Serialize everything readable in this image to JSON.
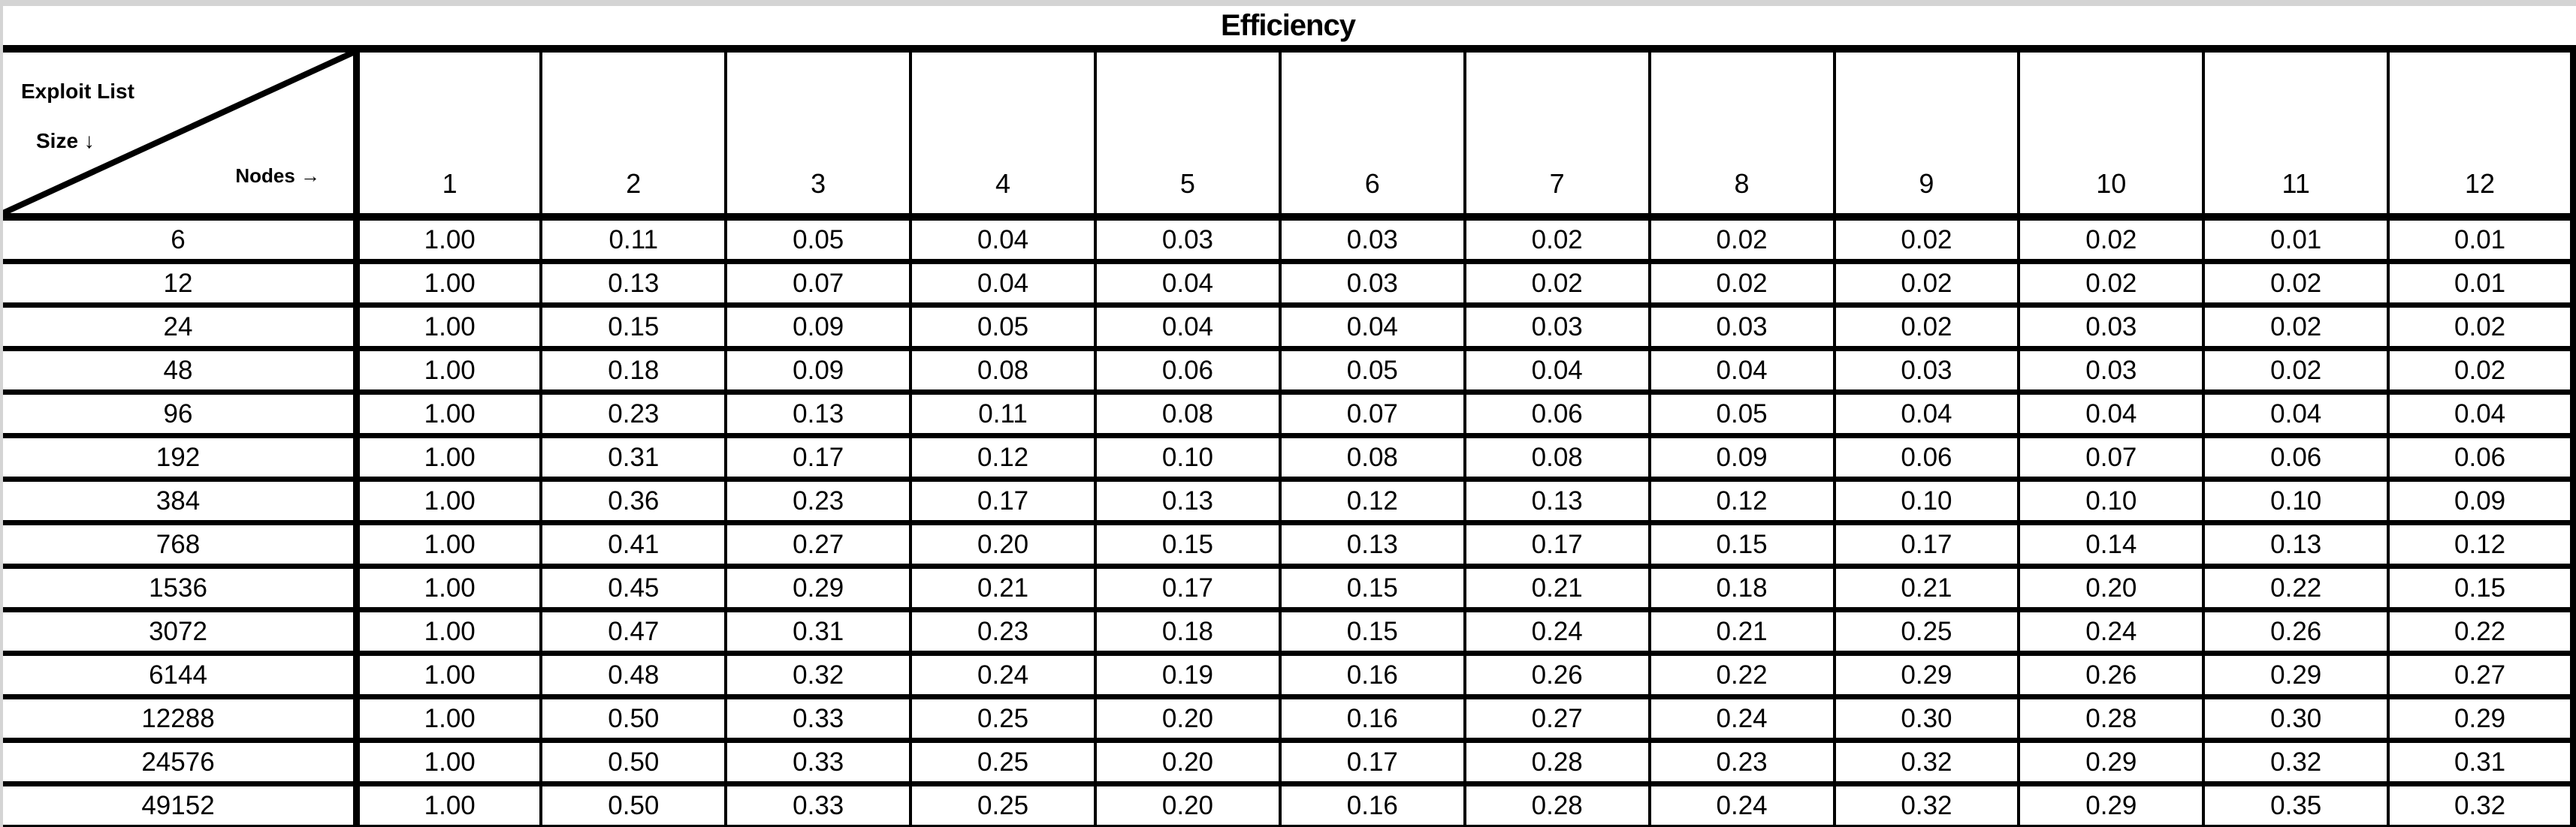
{
  "title": "Efficiency",
  "corner": {
    "top_label": "Exploit List",
    "left_axis_label": "Size ↓",
    "column_axis_label": "Nodes →"
  },
  "colors": {
    "border": "#000000",
    "text": "#000000",
    "background": "#ffffff",
    "page_edge": "#d4d4d4"
  },
  "chart_data": {
    "type": "table",
    "title": "Efficiency",
    "row_dimension": "Exploit List Size",
    "column_dimension": "Nodes",
    "columns": [
      "1",
      "2",
      "3",
      "4",
      "5",
      "6",
      "7",
      "8",
      "9",
      "10",
      "11",
      "12"
    ],
    "row_labels": [
      "6",
      "12",
      "24",
      "48",
      "96",
      "192",
      "384",
      "768",
      "1536",
      "3072",
      "6144",
      "12288",
      "24576",
      "49152"
    ],
    "values": [
      [
        "1.00",
        "0.11",
        "0.05",
        "0.04",
        "0.03",
        "0.03",
        "0.02",
        "0.02",
        "0.02",
        "0.02",
        "0.01",
        "0.01"
      ],
      [
        "1.00",
        "0.13",
        "0.07",
        "0.04",
        "0.04",
        "0.03",
        "0.02",
        "0.02",
        "0.02",
        "0.02",
        "0.02",
        "0.01"
      ],
      [
        "1.00",
        "0.15",
        "0.09",
        "0.05",
        "0.04",
        "0.04",
        "0.03",
        "0.03",
        "0.02",
        "0.03",
        "0.02",
        "0.02"
      ],
      [
        "1.00",
        "0.18",
        "0.09",
        "0.08",
        "0.06",
        "0.05",
        "0.04",
        "0.04",
        "0.03",
        "0.03",
        "0.02",
        "0.02"
      ],
      [
        "1.00",
        "0.23",
        "0.13",
        "0.11",
        "0.08",
        "0.07",
        "0.06",
        "0.05",
        "0.04",
        "0.04",
        "0.04",
        "0.04"
      ],
      [
        "1.00",
        "0.31",
        "0.17",
        "0.12",
        "0.10",
        "0.08",
        "0.08",
        "0.09",
        "0.06",
        "0.07",
        "0.06",
        "0.06"
      ],
      [
        "1.00",
        "0.36",
        "0.23",
        "0.17",
        "0.13",
        "0.12",
        "0.13",
        "0.12",
        "0.10",
        "0.10",
        "0.10",
        "0.09"
      ],
      [
        "1.00",
        "0.41",
        "0.27",
        "0.20",
        "0.15",
        "0.13",
        "0.17",
        "0.15",
        "0.17",
        "0.14",
        "0.13",
        "0.12"
      ],
      [
        "1.00",
        "0.45",
        "0.29",
        "0.21",
        "0.17",
        "0.15",
        "0.21",
        "0.18",
        "0.21",
        "0.20",
        "0.22",
        "0.15"
      ],
      [
        "1.00",
        "0.47",
        "0.31",
        "0.23",
        "0.18",
        "0.15",
        "0.24",
        "0.21",
        "0.25",
        "0.24",
        "0.26",
        "0.22"
      ],
      [
        "1.00",
        "0.48",
        "0.32",
        "0.24",
        "0.19",
        "0.16",
        "0.26",
        "0.22",
        "0.29",
        "0.26",
        "0.29",
        "0.27"
      ],
      [
        "1.00",
        "0.50",
        "0.33",
        "0.25",
        "0.20",
        "0.16",
        "0.27",
        "0.24",
        "0.30",
        "0.28",
        "0.30",
        "0.29"
      ],
      [
        "1.00",
        "0.50",
        "0.33",
        "0.25",
        "0.20",
        "0.17",
        "0.28",
        "0.23",
        "0.32",
        "0.29",
        "0.32",
        "0.31"
      ],
      [
        "1.00",
        "0.50",
        "0.33",
        "0.25",
        "0.20",
        "0.16",
        "0.28",
        "0.24",
        "0.32",
        "0.29",
        "0.35",
        "0.32"
      ]
    ]
  }
}
